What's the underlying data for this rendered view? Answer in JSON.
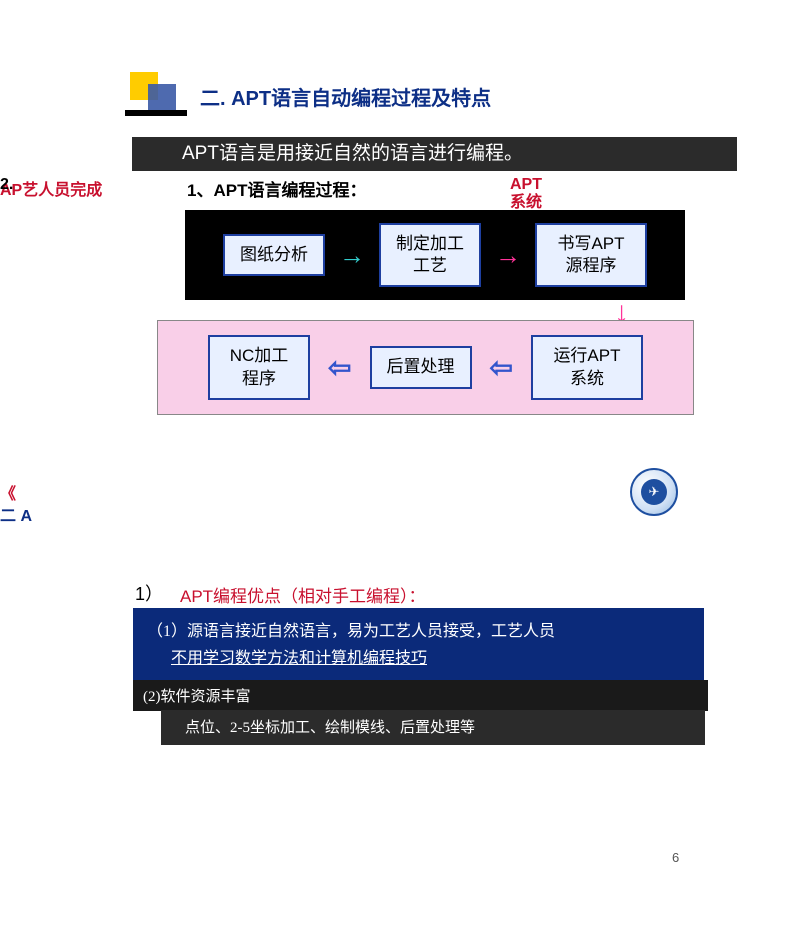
{
  "title": "二. APT语言自动编程过程及特点",
  "banner": "APT语言是用接近自然的语言进行编程。",
  "left_stray_red": "AP艺人员完成",
  "left_stray_black": "2.",
  "subtitle": "1、APT语言编程过程：",
  "apt_sys_line1": "APT",
  "apt_sys_line2": "系统",
  "flow_top": {
    "box1": "图纸分析",
    "box2_l1": "制定加工",
    "box2_l2": "工艺",
    "box3_l1": "书写APT",
    "box3_l2": "源程序"
  },
  "flow_bottom": {
    "box1_l1": "NC加工",
    "box1_l2": "程序",
    "box2": "后置处理",
    "box3_l1": "运行APT",
    "box3_l2": "系统"
  },
  "arrows": {
    "right": "→",
    "down": "↓",
    "left_open": "⇦"
  },
  "bottom_stray_l1": "《",
  "bottom_stray_l2": "二 A",
  "section2": {
    "num": "1）",
    "title": "APT编程优点（相对手工编程）：",
    "point1_l1": "（1）源语言接近自然语言，易为工艺人员接受，工艺人员",
    "point1_l2": "不用学习数学方法和计算机编程技巧",
    "point2": "(2)软件资源丰富",
    "point2_detail": "点位、2-5坐标加工、绘制模线、后置处理等"
  },
  "page_number": "6",
  "colors": {
    "title_blue": "#0d2f86",
    "red": "#c8102e",
    "banner_bg": "#2b2b2b",
    "bluebox_bg": "#0b2a7a",
    "pink_bg": "#f9cfe8",
    "box_border": "#1e3fa0",
    "box_fill": "#e8f0ff",
    "arrow_cyan": "#33cccc",
    "arrow_pink": "#ff3399",
    "arrow_blue": "#3355cc"
  }
}
